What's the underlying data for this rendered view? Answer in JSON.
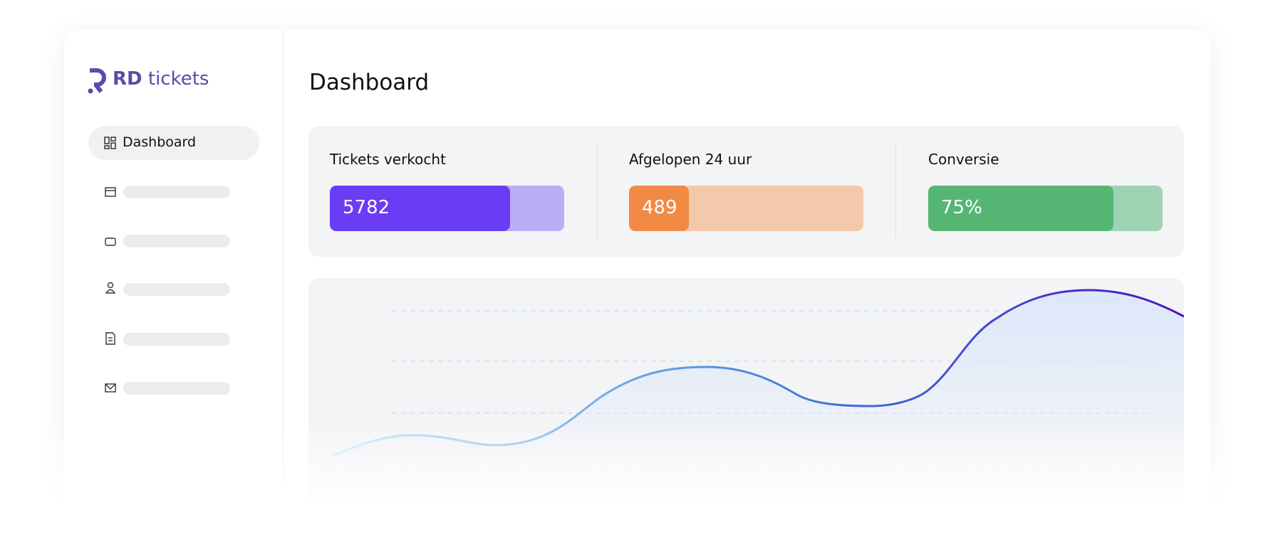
{
  "brand": {
    "name": "RD",
    "suffix": "tickets"
  },
  "nav": {
    "active": "Dashboard"
  },
  "header": {
    "title": "Dashboard"
  },
  "stats": [
    {
      "label": "Tickets verkocht",
      "value": 5782
    },
    {
      "label": "Afgelopen 24 uur",
      "value": 489
    },
    {
      "label": "Conversie",
      "value": "75%"
    }
  ]
}
